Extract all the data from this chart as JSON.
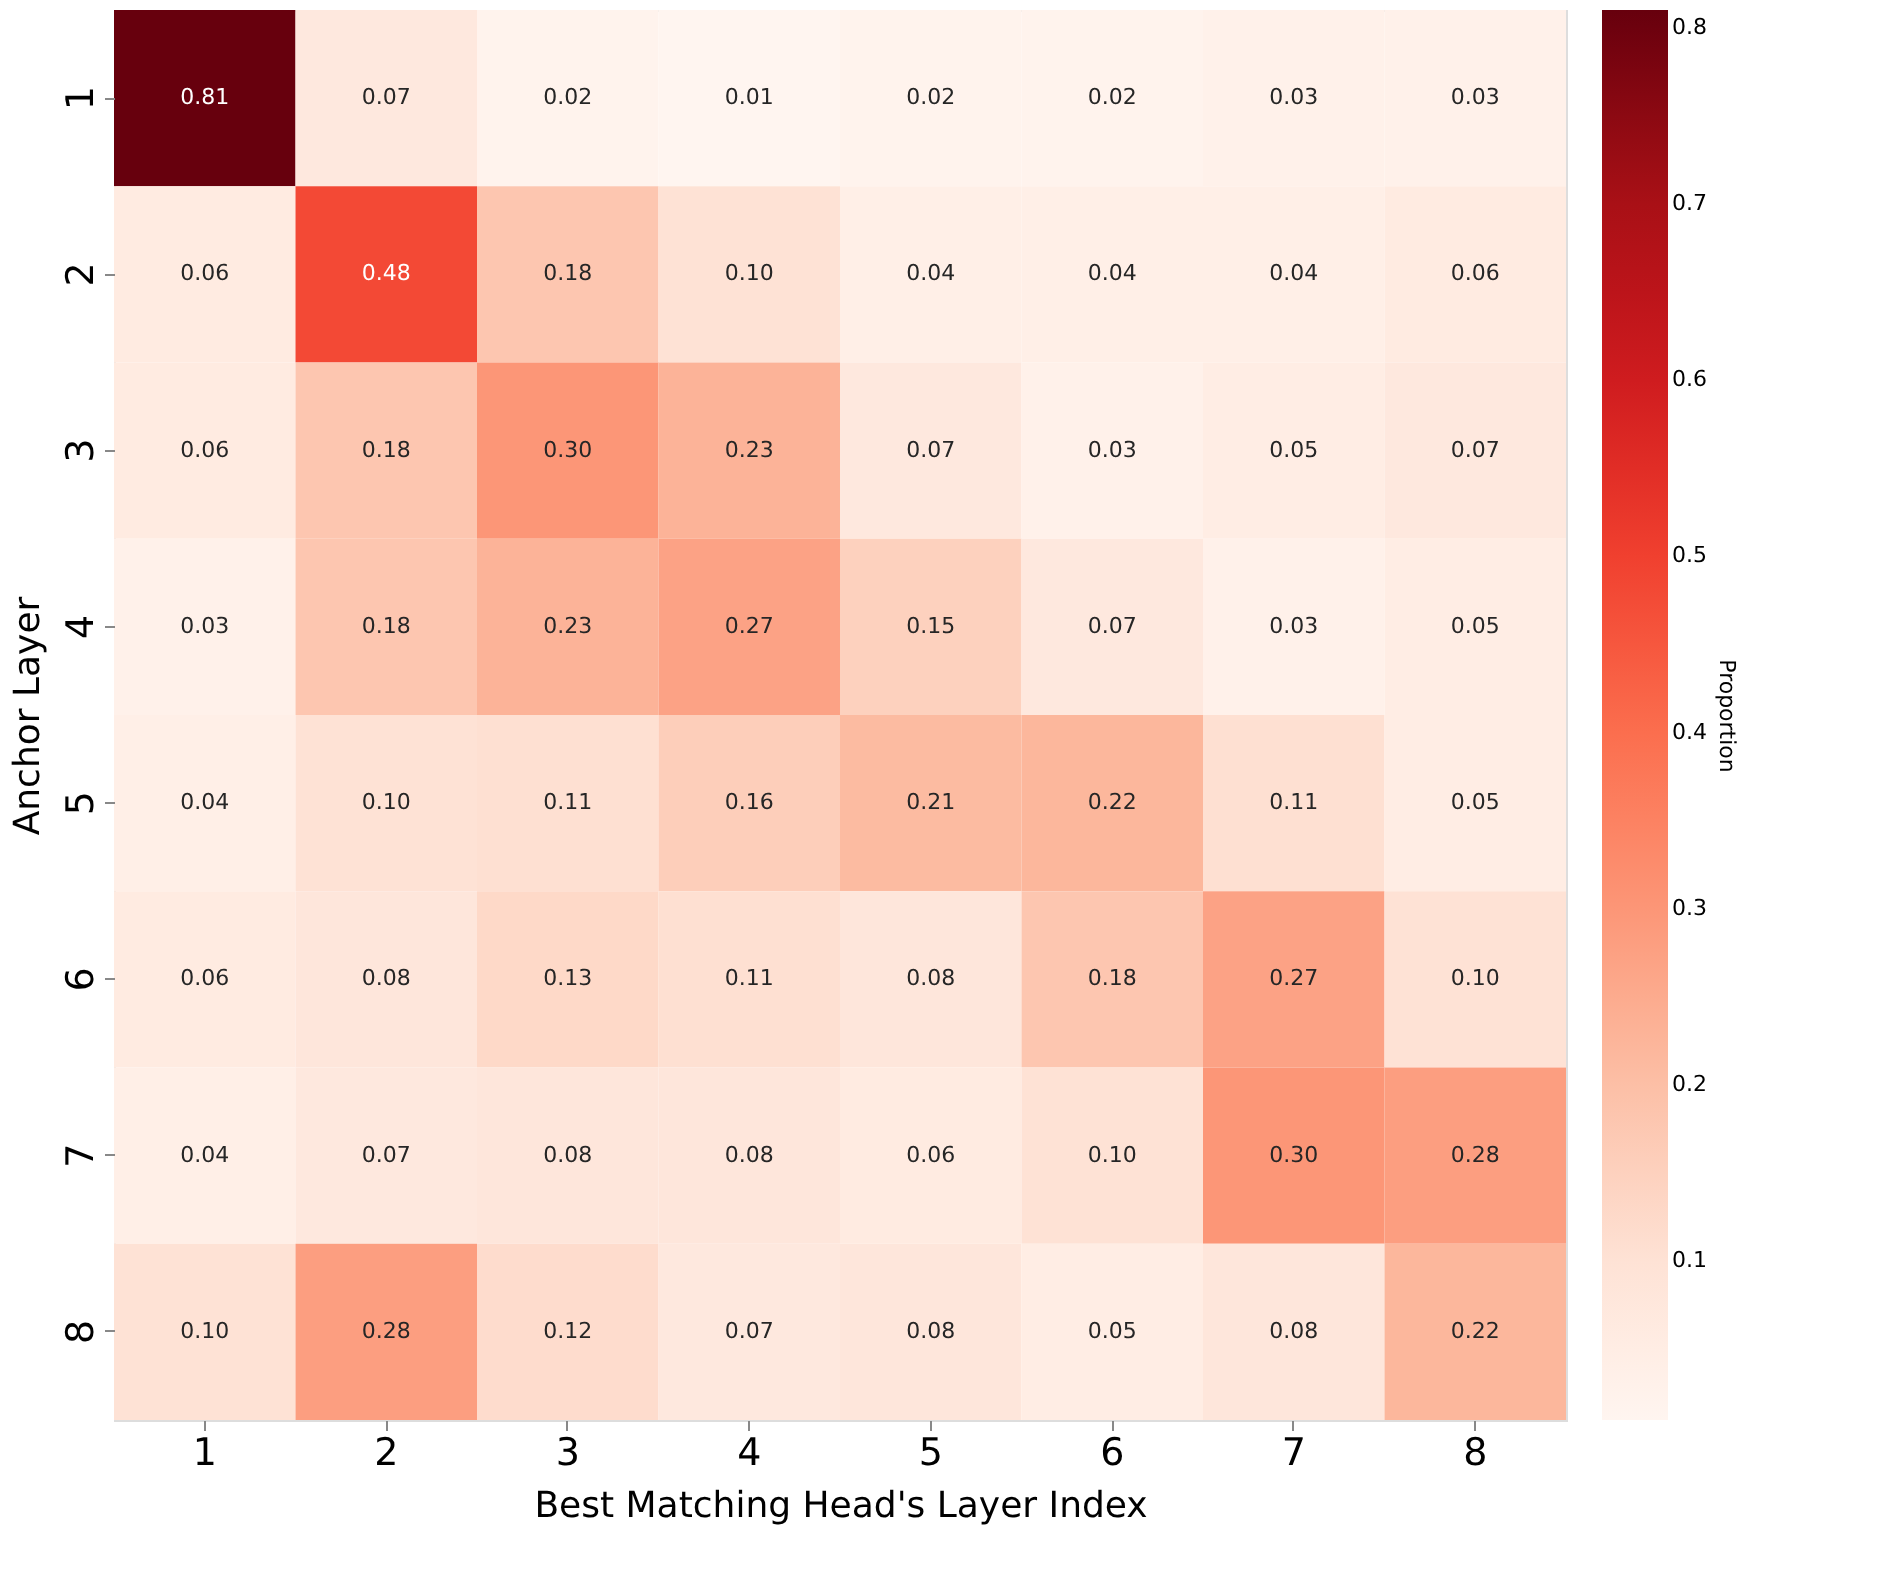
{
  "chart_data": {
    "type": "heatmap",
    "xlabel": "Best Matching Head's Layer Index",
    "ylabel": "Anchor Layer",
    "clabel": "Proportion",
    "categories": [
      "1",
      "2",
      "3",
      "4",
      "5",
      "6",
      "7",
      "8"
    ],
    "y_categories": [
      "1",
      "2",
      "3",
      "4",
      "5",
      "6",
      "7",
      "8"
    ],
    "cells": [
      [
        0.81,
        0.07,
        0.02,
        0.01,
        0.02,
        0.02,
        0.03,
        0.03
      ],
      [
        0.06,
        0.48,
        0.18,
        0.1,
        0.04,
        0.04,
        0.04,
        0.06
      ],
      [
        0.06,
        0.18,
        0.3,
        0.23,
        0.07,
        0.03,
        0.05,
        0.07
      ],
      [
        0.03,
        0.18,
        0.23,
        0.27,
        0.15,
        0.07,
        0.03,
        0.05
      ],
      [
        0.04,
        0.1,
        0.11,
        0.16,
        0.21,
        0.22,
        0.11,
        0.05
      ],
      [
        0.06,
        0.08,
        0.13,
        0.11,
        0.08,
        0.18,
        0.27,
        0.1
      ],
      [
        0.04,
        0.07,
        0.08,
        0.08,
        0.06,
        0.1,
        0.3,
        0.28
      ],
      [
        0.1,
        0.28,
        0.12,
        0.07,
        0.08,
        0.05,
        0.08,
        0.22
      ]
    ],
    "cell_labels": [
      [
        "0.81",
        "0.07",
        "0.02",
        "0.01",
        "0.02",
        "0.02",
        "0.03",
        "0.03"
      ],
      [
        "0.06",
        "0.48",
        "0.18",
        "0.10",
        "0.04",
        "0.04",
        "0.04",
        "0.06"
      ],
      [
        "0.06",
        "0.18",
        "0.30",
        "0.23",
        "0.07",
        "0.03",
        "0.05",
        "0.07"
      ],
      [
        "0.03",
        "0.18",
        "0.23",
        "0.27",
        "0.15",
        "0.07",
        "0.03",
        "0.05"
      ],
      [
        "0.04",
        "0.10",
        "0.11",
        "0.16",
        "0.21",
        "0.22",
        "0.11",
        "0.05"
      ],
      [
        "0.06",
        "0.08",
        "0.13",
        "0.11",
        "0.08",
        "0.18",
        "0.27",
        "0.10"
      ],
      [
        "0.04",
        "0.07",
        "0.08",
        "0.08",
        "0.06",
        "0.10",
        "0.30",
        "0.28"
      ],
      [
        "0.10",
        "0.28",
        "0.12",
        "0.07",
        "0.08",
        "0.05",
        "0.08",
        "0.22"
      ]
    ],
    "clim": [
      0.01,
      0.81
    ],
    "cticks": [
      0.1,
      0.2,
      0.3,
      0.4,
      0.5,
      0.6,
      0.7,
      0.8
    ],
    "data_labels": true,
    "grid": false
  }
}
